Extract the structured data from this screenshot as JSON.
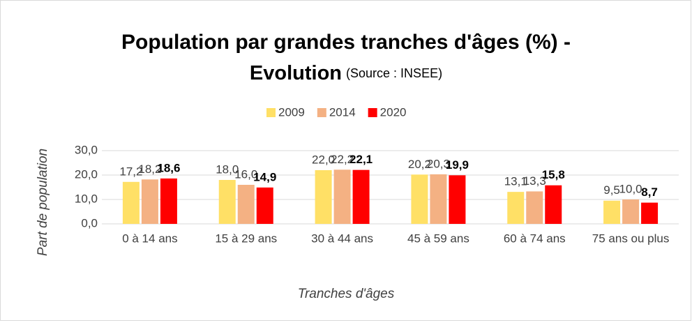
{
  "chart_data": {
    "type": "bar",
    "title": "Population par grandes tranches d'âges (%) -",
    "title_line2": "Evolution",
    "source": "(Source : INSEE)",
    "x_label": "Tranches d'âges",
    "y_label": "Part de population",
    "categories": [
      "0 à 14 ans",
      "15 à 29 ans",
      "30 à 44 ans",
      "45 à 59 ans",
      "60 à 74 ans",
      "75 ans ou plus"
    ],
    "series": [
      {
        "name": "2009",
        "color": "#FFE066",
        "values": [
          17.2,
          18.0,
          22.0,
          20.2,
          13.1,
          9.5
        ],
        "value_labels": [
          "17,2",
          "18,0",
          "22,0",
          "20,2",
          "13,1",
          "9,5"
        ]
      },
      {
        "name": "2014",
        "color": "#F4B183",
        "values": [
          18.2,
          16.0,
          22.2,
          20.3,
          13.3,
          10.0
        ],
        "value_labels": [
          "18,2",
          "16,0",
          "22,2",
          "20,3",
          "13,3",
          "10,0"
        ]
      },
      {
        "name": "2020",
        "color": "#FF0000",
        "values": [
          18.6,
          14.9,
          22.1,
          19.9,
          15.8,
          8.7
        ],
        "value_labels": [
          "18,6",
          "14,9",
          "22,1",
          "19,9",
          "15,8",
          "8,7"
        ]
      }
    ],
    "ylim": [
      0,
      30
    ],
    "yticks": [
      {
        "value": 0,
        "label": "0,0"
      },
      {
        "value": 10,
        "label": "10,0"
      },
      {
        "value": 20,
        "label": "20,0"
      },
      {
        "value": 30,
        "label": "30,0"
      }
    ],
    "grid": true,
    "legend": "top"
  }
}
